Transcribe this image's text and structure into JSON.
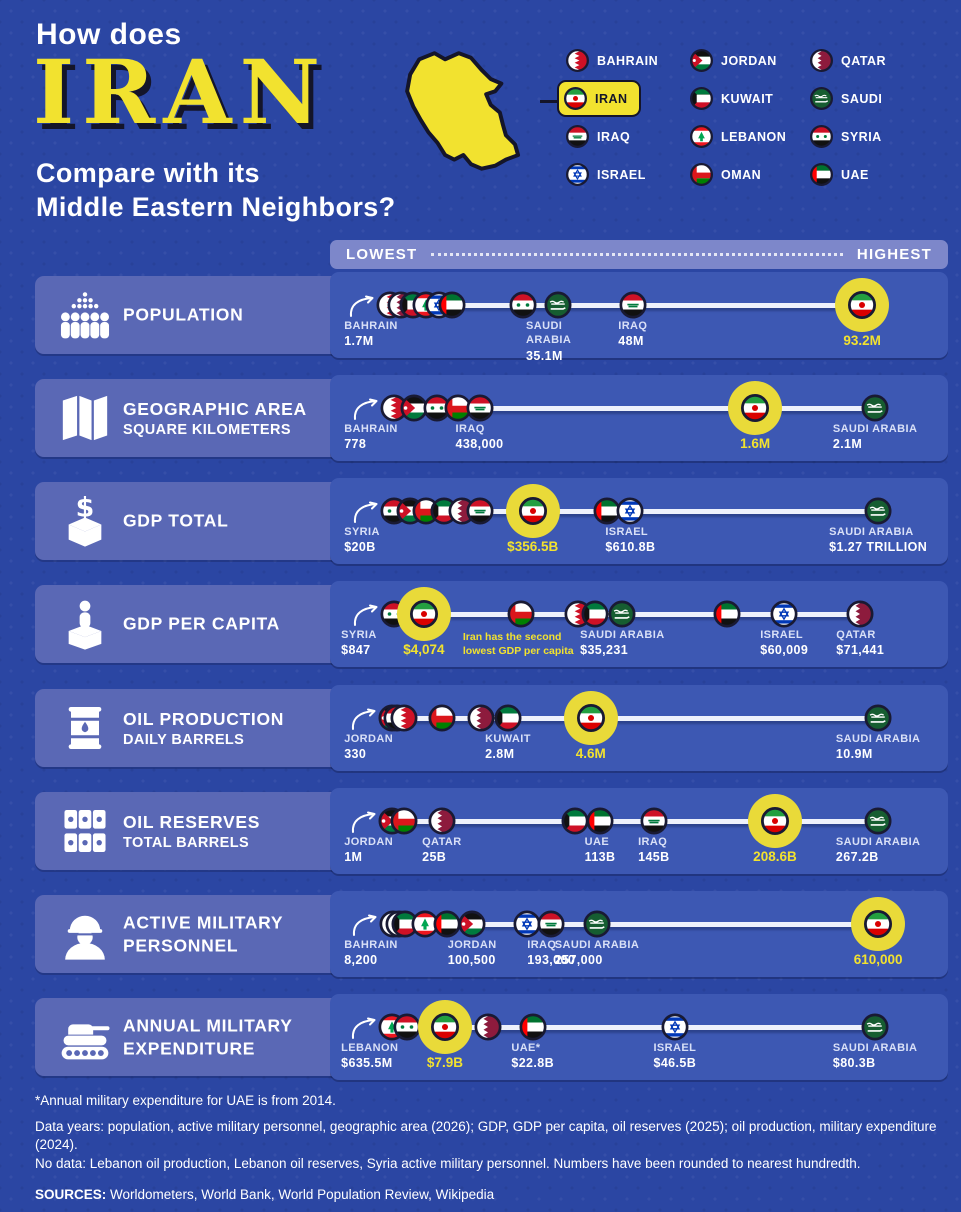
{
  "header": {
    "line1": "How does",
    "highlight": "IRAN",
    "line2": "Compare with its",
    "line3": "Middle Eastern Neighbors?"
  },
  "legend": {
    "countries": [
      {
        "code": "bahrain",
        "label": "BAHRAIN"
      },
      {
        "code": "iran",
        "label": "IRAN",
        "highlight": true
      },
      {
        "code": "iraq",
        "label": "IRAQ"
      },
      {
        "code": "israel",
        "label": "ISRAEL"
      },
      {
        "code": "jordan",
        "label": "JORDAN"
      },
      {
        "code": "kuwait",
        "label": "KUWAIT"
      },
      {
        "code": "lebanon",
        "label": "LEBANON"
      },
      {
        "code": "oman",
        "label": "OMAN"
      },
      {
        "code": "qatar",
        "label": "QATAR"
      },
      {
        "code": "saudi",
        "label": "SAUDI"
      },
      {
        "code": "syria",
        "label": "SYRIA"
      },
      {
        "code": "uae",
        "label": "UAE"
      }
    ]
  },
  "scale": {
    "lowest": "LOWEST",
    "highest": "HIGHEST"
  },
  "colors": {
    "background": "#2b46a3",
    "row_panel": "#3d58b3",
    "label_panel": "#5a68b5",
    "scale_bar": "#7d87ca",
    "accent_yellow": "#f2e22f",
    "line": "#eef1fb",
    "ink": "#14152a"
  },
  "chart_data": {
    "type": "dot-plot-rows",
    "axis": {
      "left": "LOWEST",
      "right": "HIGHEST"
    },
    "rows": [
      {
        "id": "population",
        "metric": "POPULATION",
        "submetric": "",
        "icon": "people-icon",
        "points": [
          {
            "country": "bahrain",
            "x_pct": 9.7,
            "arrow": true,
            "label": "BAHRAIN",
            "value": "1.7M",
            "label_x": 2.3
          },
          {
            "country": "qatar",
            "x_pct": 11.5
          },
          {
            "country": "kuwait",
            "x_pct": 13.4
          },
          {
            "country": "lebanon",
            "x_pct": 15.6
          },
          {
            "country": "israel",
            "x_pct": 17.7
          },
          {
            "country": "uae",
            "x_pct": 19.8
          },
          {
            "country": "syria",
            "x_pct": 31.2
          },
          {
            "country": "saudi",
            "x_pct": 36.9,
            "label": "SAUDI ARABIA",
            "value": "35.1M",
            "wrap": true
          },
          {
            "country": "iraq",
            "x_pct": 49.0,
            "label": "IRAQ",
            "value": "48M"
          },
          {
            "country": "iran",
            "x_pct": 86.1,
            "highlight": true,
            "value": "93.2M"
          }
        ]
      },
      {
        "id": "geographic-area",
        "metric": "GEOGRAPHIC AREA",
        "submetric": "SQUARE KILOMETERS",
        "icon": "map-icon",
        "points": [
          {
            "country": "bahrain",
            "x_pct": 10.3,
            "arrow": true,
            "label": "BAHRAIN",
            "value": "778",
            "label_x": 2.3
          },
          {
            "country": "jordan",
            "x_pct": 13.6
          },
          {
            "country": "syria",
            "x_pct": 17.3
          },
          {
            "country": "oman",
            "x_pct": 20.7
          },
          {
            "country": "iraq",
            "x_pct": 24.2,
            "label": "IRAQ",
            "value": "438,000"
          },
          {
            "country": "iran",
            "x_pct": 68.8,
            "highlight": true,
            "value": "1.6M"
          },
          {
            "country": "saudi",
            "x_pct": 88.2,
            "label": "SAUDI ARABIA",
            "value": "2.1M"
          }
        ]
      },
      {
        "id": "gdp-total",
        "metric": "GDP TOTAL",
        "submetric": "",
        "icon": "ballot-dollar-icon",
        "points": [
          {
            "country": "syria",
            "x_pct": 10.3,
            "arrow": true,
            "label": "SYRIA",
            "value": "$20B",
            "label_x": 2.3
          },
          {
            "country": "jordan",
            "x_pct": 12.9
          },
          {
            "country": "oman",
            "x_pct": 15.5
          },
          {
            "country": "kuwait",
            "x_pct": 18.4
          },
          {
            "country": "qatar",
            "x_pct": 21.4
          },
          {
            "country": "iraq",
            "x_pct": 24.3
          },
          {
            "country": "iran",
            "x_pct": 32.8,
            "highlight": true,
            "value": "$356.5B"
          },
          {
            "country": "uae",
            "x_pct": 44.9
          },
          {
            "country": "israel",
            "x_pct": 48.6,
            "label": "ISRAEL",
            "value": "$610.8B"
          },
          {
            "country": "saudi",
            "x_pct": 88.7,
            "label": "SAUDI ARABIA",
            "value": "$1.27 TRILLION"
          }
        ]
      },
      {
        "id": "gdp-per-capita",
        "metric": "GDP PER CAPITA",
        "submetric": "",
        "icon": "person-podium-icon",
        "points": [
          {
            "country": "syria",
            "x_pct": 10.3,
            "arrow": true,
            "label": "SYRIA",
            "value": "$847",
            "label_x": 1.8
          },
          {
            "country": "iraq",
            "x_pct": 17.3
          },
          {
            "country": "iran",
            "x_pct": 15.2,
            "highlight": true,
            "value": "$4,074",
            "note": "Iran has the second lowest GDP per capita",
            "note_x": 21.5
          },
          {
            "country": "oman",
            "x_pct": 30.9
          },
          {
            "country": "bahrain",
            "x_pct": 40.1
          },
          {
            "country": "kuwait",
            "x_pct": 42.8
          },
          {
            "country": "saudi",
            "x_pct": 47.3,
            "label": "SAUDI ARABIA",
            "value": "$35,231"
          },
          {
            "country": "uae",
            "x_pct": 64.2
          },
          {
            "country": "israel",
            "x_pct": 73.5,
            "label": "ISRAEL",
            "value": "$60,009"
          },
          {
            "country": "qatar",
            "x_pct": 85.8,
            "label": "QATAR",
            "value": "$71,441"
          }
        ]
      },
      {
        "id": "oil-production",
        "metric": "OIL PRODUCTION",
        "submetric": "DAILY BARRELS",
        "icon": "barrel-icon",
        "points": [
          {
            "country": "jordan",
            "x_pct": 10.0,
            "arrow": true,
            "label": "JORDAN",
            "value": "330",
            "label_x": 2.3
          },
          {
            "country": "syria",
            "x_pct": 10.9
          },
          {
            "country": "bahrain",
            "x_pct": 11.9
          },
          {
            "country": "oman",
            "x_pct": 18.1
          },
          {
            "country": "qatar",
            "x_pct": 24.4
          },
          {
            "country": "kuwait",
            "x_pct": 28.8,
            "label": "KUWAIT",
            "value": "2.8M"
          },
          {
            "country": "uae",
            "x_pct": 40.3
          },
          {
            "country": "iraq",
            "x_pct": 41.3
          },
          {
            "country": "iran",
            "x_pct": 42.2,
            "highlight": true,
            "value": "4.6M"
          },
          {
            "country": "saudi",
            "x_pct": 88.7,
            "label": "SAUDI ARABIA",
            "value": "10.9M"
          }
        ]
      },
      {
        "id": "oil-reserves",
        "metric": "OIL RESERVES",
        "submetric": "TOTAL BARRELS",
        "icon": "barrels-icon",
        "points": [
          {
            "country": "jordan",
            "x_pct": 10.0,
            "arrow": true,
            "label": "JORDAN",
            "value": "1M",
            "label_x": 2.3
          },
          {
            "country": "oman",
            "x_pct": 11.9
          },
          {
            "country": "qatar",
            "x_pct": 18.1,
            "label": "QATAR",
            "value": "25B"
          },
          {
            "country": "kuwait",
            "x_pct": 39.6
          },
          {
            "country": "uae",
            "x_pct": 43.7,
            "label": "UAE",
            "value": "113B"
          },
          {
            "country": "iraq",
            "x_pct": 52.4,
            "label": "IRAQ",
            "value": "145B"
          },
          {
            "country": "iran",
            "x_pct": 72.0,
            "highlight": true,
            "value": "208.6B"
          },
          {
            "country": "saudi",
            "x_pct": 88.7,
            "label": "SAUDI ARABIA",
            "value": "267.2B"
          }
        ]
      },
      {
        "id": "active-military",
        "metric": "ACTIVE MILITARY\nPERSONNEL",
        "submetric": "",
        "icon": "soldier-icon",
        "points": [
          {
            "country": "bahrain",
            "x_pct": 10.2,
            "arrow": true,
            "label": "BAHRAIN",
            "value": "8,200",
            "label_x": 2.3
          },
          {
            "country": "qatar",
            "x_pct": 11.2
          },
          {
            "country": "kuwait",
            "x_pct": 12.2
          },
          {
            "country": "lebanon",
            "x_pct": 15.3
          },
          {
            "country": "uae",
            "x_pct": 18.9
          },
          {
            "country": "jordan",
            "x_pct": 23.0,
            "label": "JORDAN",
            "value": "100,500"
          },
          {
            "country": "israel",
            "x_pct": 31.9
          },
          {
            "country": "iraq",
            "x_pct": 35.8,
            "label": "IRAQ",
            "value": "193,000"
          },
          {
            "country": "saudi",
            "x_pct": 43.2,
            "label": "SAUDI ARABIA",
            "value": "257,000"
          },
          {
            "country": "iran",
            "x_pct": 88.7,
            "highlight": true,
            "value": "610,000"
          }
        ]
      },
      {
        "id": "military-expenditure",
        "metric": "ANNUAL MILITARY\nEXPENDITURE",
        "submetric": "",
        "icon": "tank-icon",
        "points": [
          {
            "country": "lebanon",
            "x_pct": 10.0,
            "arrow": true,
            "label": "LEBANON",
            "value": "$635.5M",
            "label_x": 1.8
          },
          {
            "country": "syria",
            "x_pct": 12.4
          },
          {
            "country": "iran",
            "x_pct": 18.6,
            "highlight": true,
            "value": "$7.9B"
          },
          {
            "country": "qatar",
            "x_pct": 25.6
          },
          {
            "country": "uae",
            "x_pct": 32.8,
            "label": "UAE*",
            "value": "$22.8B"
          },
          {
            "country": "israel",
            "x_pct": 55.8,
            "label": "ISRAEL",
            "value": "$46.5B"
          },
          {
            "country": "saudi",
            "x_pct": 88.2,
            "label": "SAUDI ARABIA",
            "value": "$80.3B"
          }
        ]
      }
    ]
  },
  "footnotes": [
    "*Annual military expenditure for UAE is from 2014.",
    "Data years: population, active military personnel, geographic area (2026); GDP, GDP per capita, oil reserves (2025); oil production, military expenditure (2024).",
    "No data: Lebanon oil production, Lebanon oil reserves, Syria active military personnel. Numbers have been rounded to nearest hundredth."
  ],
  "sources": {
    "label": "SOURCES:",
    "text": " Worldometers, World Bank, World Population Review, Wikipedia"
  }
}
